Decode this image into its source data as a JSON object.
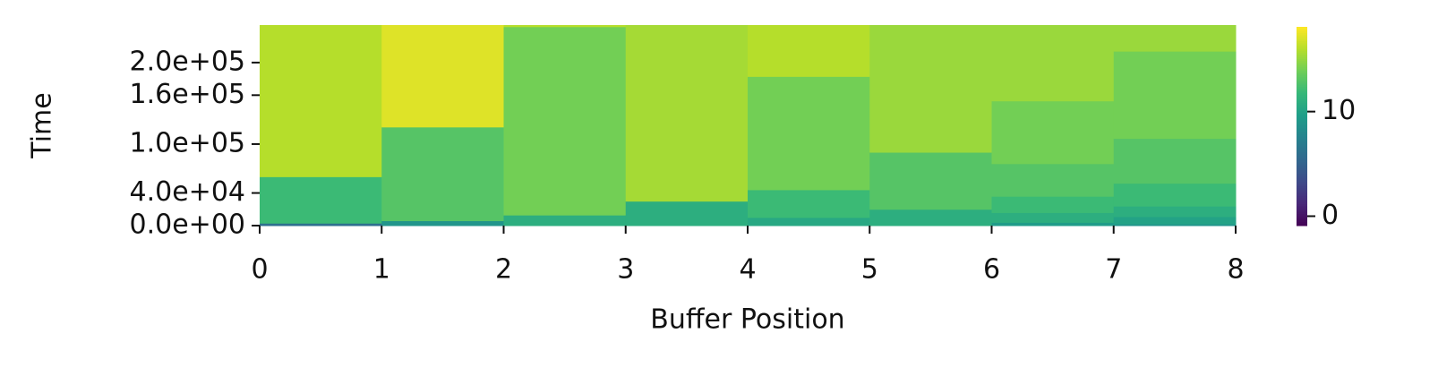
{
  "chart_data": {
    "type": "heatmap-steps",
    "colormap": "viridis",
    "xlabel": "Buffer Position",
    "ylabel": "Time",
    "xlim": [
      0,
      8
    ],
    "xticks": [
      0,
      1,
      2,
      3,
      4,
      5,
      6,
      7,
      8
    ],
    "ylim": [
      0,
      246000
    ],
    "yticks": [
      {
        "value": 0,
        "label": "0.0e+00"
      },
      {
        "value": 40000,
        "label": "4.0e+04"
      },
      {
        "value": 100000,
        "label": "1.0e+05"
      },
      {
        "value": 160000,
        "label": "1.6e+05"
      },
      {
        "value": 200000,
        "label": "2.0e+05"
      }
    ],
    "clim": [
      -0.9,
      18.1
    ],
    "cticks": [
      0,
      10
    ],
    "columns": [
      {
        "edges": [
          0,
          3000,
          60000,
          246000
        ],
        "values": [
          6,
          12,
          16
        ]
      },
      {
        "edges": [
          0,
          6000,
          121000,
          246000
        ],
        "values": [
          9,
          13,
          17.2
        ]
      },
      {
        "edges": [
          0,
          13000,
          244000,
          246000
        ],
        "values": [
          11,
          14,
          16
        ]
      },
      {
        "edges": [
          0,
          30000,
          246000
        ],
        "values": [
          11,
          15.5
        ]
      },
      {
        "edges": [
          0,
          10000,
          44000,
          183000,
          246000
        ],
        "values": [
          10.5,
          12,
          14,
          16
        ]
      },
      {
        "edges": [
          0,
          20000,
          90000,
          246000
        ],
        "values": [
          11,
          13,
          15.2
        ]
      },
      {
        "edges": [
          0,
          4000,
          16000,
          36000,
          76000,
          153000,
          246000
        ],
        "values": [
          9.5,
          11,
          12,
          13,
          14,
          15.2
        ]
      },
      {
        "edges": [
          0,
          2000,
          11000,
          24000,
          52000,
          107000,
          214000,
          246000
        ],
        "values": [
          9,
          10,
          11,
          12,
          13,
          14,
          15.2
        ]
      }
    ]
  }
}
